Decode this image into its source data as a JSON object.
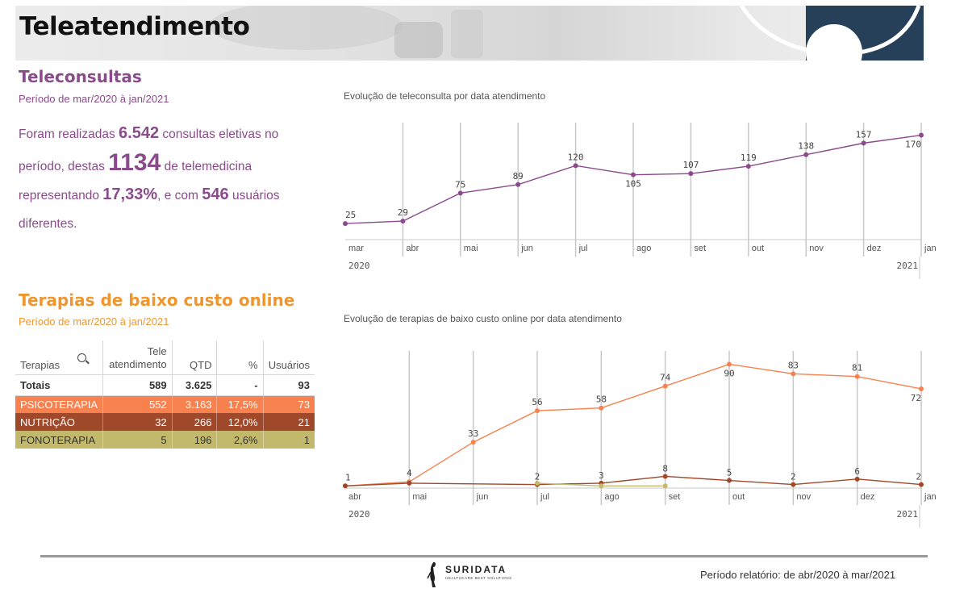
{
  "header": {
    "title": "Teleatendimento"
  },
  "teleconsultas": {
    "title": "Teleconsultas",
    "period": "Período de mar/2020 à jan/2021",
    "narr_1": "Foram realizadas ",
    "total_consultas": "6.542",
    "narr_2": " consultas eletivas no período, destas ",
    "telemedicina": "1134",
    "narr_3": " de telemedicina representando ",
    "percent": "17,33%",
    "narr_4": ", e com ",
    "usuarios": "546",
    "narr_5": " usuários diferentes."
  },
  "terapias": {
    "title": "Terapias de baixo custo online",
    "period": "Período de mar/2020 à jan/2021",
    "table": {
      "headers": [
        "Terapias",
        "Tele atendimento",
        "QTD",
        "%",
        "Usuários"
      ],
      "totals": [
        "Totais",
        "589",
        "3.625",
        "-",
        "93"
      ],
      "rows": [
        {
          "cells": [
            "PSICOTERAPIA",
            "552",
            "3.163",
            "17,5%",
            "73"
          ],
          "color": "#f7824f",
          "text": "#ffffff"
        },
        {
          "cells": [
            "NUTRIÇÃO",
            "32",
            "266",
            "12,0%",
            "21"
          ],
          "color": "#a0482a",
          "text": "#ffffff"
        },
        {
          "cells": [
            "FONOTERAPIA",
            "5",
            "196",
            "2,6%",
            "1"
          ],
          "color": "#c2b96d",
          "text": "#333333"
        }
      ]
    }
  },
  "chart_data": [
    {
      "type": "line",
      "title": "Evolução de teleconsulta por data atendimento",
      "categories": [
        "mar",
        "abr",
        "mai",
        "jun",
        "jul",
        "ago",
        "set",
        "out",
        "nov",
        "dez",
        "jan"
      ],
      "year_start": "2020",
      "year_end": "2021",
      "ylim": [
        0,
        180
      ],
      "grid": "vertical",
      "series": [
        {
          "values": [
            25,
            29,
            75,
            89,
            120,
            105,
            107,
            119,
            138,
            157,
            170
          ],
          "color": "#8b4a8c"
        }
      ]
    },
    {
      "type": "line",
      "title": "Evolução de terapias de baixo custo online por data atendimento",
      "categories": [
        "abr",
        "mai",
        "jun",
        "jul",
        "ago",
        "set",
        "out",
        "nov",
        "dez",
        "jan"
      ],
      "year_start": "2020",
      "year_end": "2021",
      "ylim": [
        0,
        95
      ],
      "grid": "vertical",
      "series": [
        {
          "values": [
            1,
            4,
            33,
            56,
            58,
            74,
            90,
            83,
            81,
            72
          ],
          "color": "#f7824f",
          "labels": true
        },
        {
          "values": [
            1,
            3,
            null,
            2,
            3,
            8,
            5,
            2,
            6,
            2
          ],
          "color": "#a0482a",
          "labels": true,
          "label_indices": [
            3,
            4,
            5,
            6,
            7,
            8,
            9
          ]
        },
        {
          "values": [
            null,
            null,
            null,
            3,
            1,
            1,
            null,
            null,
            null,
            null
          ],
          "color": "#c2b96d",
          "labels": false
        }
      ],
      "point_labels": [
        "1",
        "4",
        "33",
        "56",
        "58",
        "74",
        "90",
        "83",
        "81",
        "72"
      ],
      "lower_labels": {
        "3": "3",
        "4": "3",
        "5": "8",
        "6": "5",
        "7": "2",
        "8": "6",
        "9": "2"
      }
    }
  ],
  "footer": {
    "logo_name": "SURIDATA",
    "logo_tagline": "HEALTHCARE BEST SOLUTIONS",
    "period": "Período relatório: de abr/2020 à mar/2021"
  }
}
